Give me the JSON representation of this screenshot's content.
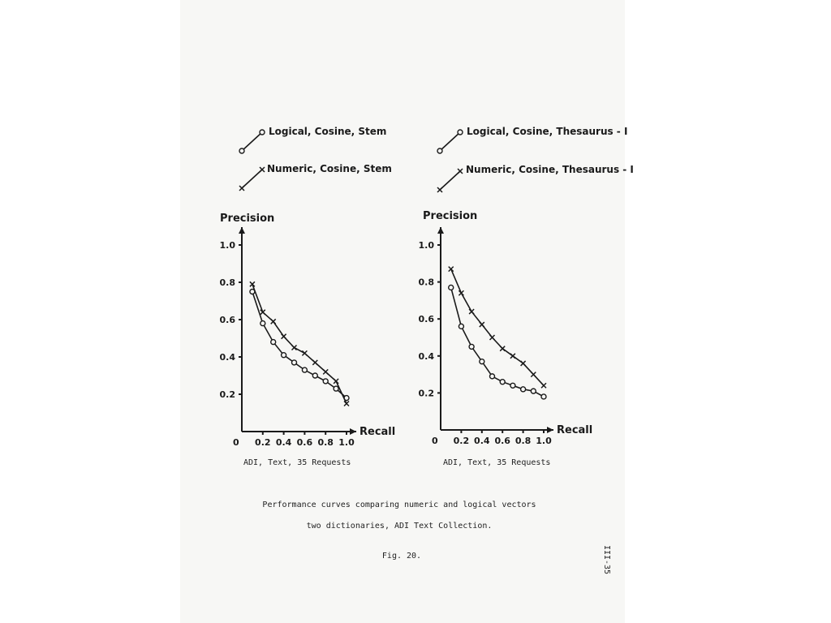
{
  "chart_data": [
    {
      "type": "line",
      "ylabel": "Precision",
      "xlabel": "Recall",
      "origin_label": "0",
      "xlim": [
        0,
        1.0
      ],
      "ylim": [
        0,
        1.0
      ],
      "x_ticks": [
        "0.2",
        "0.4",
        "0.6",
        "0.8",
        "1.0"
      ],
      "y_ticks": [
        "0.2",
        "0.4",
        "0.6",
        "0.8",
        "1.0"
      ],
      "caption": "ADI, Text,  35 Requests",
      "series": [
        {
          "name": "Logical, Cosine, Stem",
          "marker": "o",
          "x": [
            0.1,
            0.2,
            0.3,
            0.4,
            0.5,
            0.6,
            0.7,
            0.8,
            0.9,
            1.0
          ],
          "y": [
            0.75,
            0.58,
            0.48,
            0.41,
            0.37,
            0.33,
            0.3,
            0.27,
            0.23,
            0.18
          ]
        },
        {
          "name": "Numeric, Cosine, Stem",
          "marker": "x",
          "x": [
            0.1,
            0.2,
            0.3,
            0.4,
            0.5,
            0.6,
            0.7,
            0.8,
            0.9,
            1.0
          ],
          "y": [
            0.79,
            0.64,
            0.59,
            0.51,
            0.45,
            0.42,
            0.37,
            0.32,
            0.27,
            0.15
          ]
        }
      ]
    },
    {
      "type": "line",
      "ylabel": "Precision",
      "xlabel": "Recall",
      "origin_label": "0",
      "xlim": [
        0,
        1.0
      ],
      "ylim": [
        0,
        1.0
      ],
      "x_ticks": [
        "0.2",
        "0.4",
        "0.6",
        "0.8",
        "1.0"
      ],
      "y_ticks": [
        "0.2",
        "0.4",
        "0.6",
        "0.8",
        "1.0"
      ],
      "caption": "ADI, Text,  35 Requests",
      "series": [
        {
          "name": "Logical, Cosine, Thesaurus - I",
          "marker": "o",
          "x": [
            0.1,
            0.2,
            0.3,
            0.4,
            0.5,
            0.6,
            0.7,
            0.8,
            0.9,
            1.0
          ],
          "y": [
            0.77,
            0.56,
            0.45,
            0.37,
            0.29,
            0.26,
            0.24,
            0.22,
            0.21,
            0.18
          ]
        },
        {
          "name": "Numeric, Cosine, Thesaurus - I",
          "marker": "x",
          "x": [
            0.1,
            0.2,
            0.3,
            0.4,
            0.5,
            0.6,
            0.7,
            0.8,
            0.9,
            1.0
          ],
          "y": [
            0.87,
            0.74,
            0.64,
            0.57,
            0.5,
            0.44,
            0.4,
            0.36,
            0.3,
            0.24
          ]
        }
      ]
    }
  ],
  "figure": {
    "caption_line1": "Performance curves comparing numeric and logical vectors",
    "caption_line2": "two dictionaries, ADI Text Collection.",
    "fig_label": "Fig. 20.",
    "page_number": "III-35"
  }
}
